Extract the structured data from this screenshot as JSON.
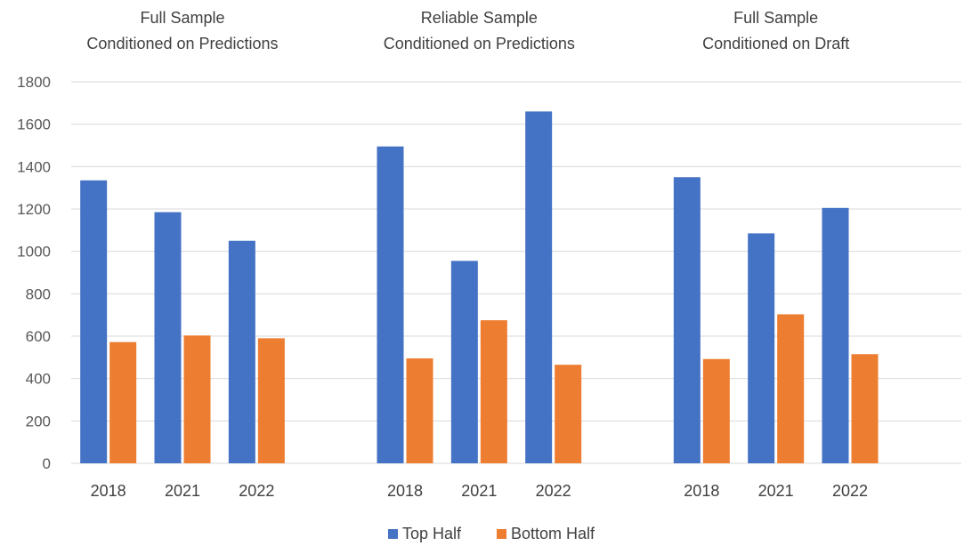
{
  "chart_data": {
    "type": "bar",
    "ylim": [
      0,
      1800
    ],
    "yticks": [
      0,
      200,
      400,
      600,
      800,
      1000,
      1200,
      1400,
      1600,
      1800
    ],
    "grid": true,
    "legend_position": "bottom",
    "colors": {
      "Top Half": "#4472C4",
      "Bottom Half": "#ED7D31"
    },
    "panels": [
      {
        "title_lines": [
          "Full Sample",
          "Conditioned on Predictions"
        ],
        "categories": [
          "2018",
          "2021",
          "2022"
        ],
        "series": [
          {
            "name": "Top Half",
            "values": [
              1335,
              1185,
              1050
            ]
          },
          {
            "name": "Bottom Half",
            "values": [
              572,
              603,
              590
            ]
          }
        ]
      },
      {
        "title_lines": [
          "Reliable Sample",
          "Conditioned on Predictions"
        ],
        "categories": [
          "2018",
          "2021",
          "2022"
        ],
        "series": [
          {
            "name": "Top Half",
            "values": [
              1495,
              955,
              1660
            ]
          },
          {
            "name": "Bottom Half",
            "values": [
              495,
              675,
              465
            ]
          }
        ]
      },
      {
        "title_lines": [
          "Full Sample",
          "Conditioned on Draft"
        ],
        "categories": [
          "2018",
          "2021",
          "2022"
        ],
        "series": [
          {
            "name": "Top Half",
            "values": [
              1350,
              1085,
              1205
            ]
          },
          {
            "name": "Bottom Half",
            "values": [
              492,
              703,
              515
            ]
          }
        ]
      }
    ],
    "legend": [
      "Top Half",
      "Bottom Half"
    ]
  }
}
